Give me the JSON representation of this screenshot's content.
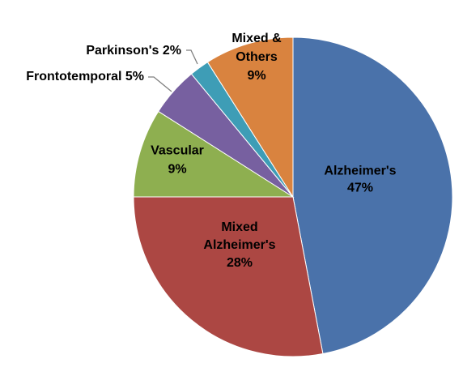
{
  "chart_data": {
    "type": "pie",
    "title": "",
    "start_angle_deg": 0,
    "direction": "clockwise",
    "slices": [
      {
        "name": "Alzheimer's",
        "value": 47,
        "color": "#4A72AA",
        "label_lines": [
          "Alzheimer's",
          "47%"
        ],
        "label_color": "#000000",
        "label_position": "inside"
      },
      {
        "name": "Mixed Alzheimer's",
        "value": 28,
        "color": "#AC4743",
        "label_lines": [
          "Mixed",
          "Alzheimer's",
          "28%"
        ],
        "label_color": "#000000",
        "label_position": "inside"
      },
      {
        "name": "Vascular",
        "value": 9,
        "color": "#8EAF50",
        "label_lines": [
          "Vascular",
          "9%"
        ],
        "label_color": "#000000",
        "label_position": "inside"
      },
      {
        "name": "Frontotemporal",
        "value": 5,
        "color": "#7760A0",
        "label_lines": [
          "Frontotemporal 5%"
        ],
        "label_color": "#000000",
        "label_position": "outside-leader"
      },
      {
        "name": "Parkinson's",
        "value": 2,
        "color": "#3E9DB6",
        "label_lines": [
          "Parkinson's 2%"
        ],
        "label_color": "#000000",
        "label_position": "outside-leader"
      },
      {
        "name": "Mixed & Others",
        "value": 9,
        "color": "#D9833F",
        "label_lines": [
          "Mixed &",
          "Others",
          "9%"
        ],
        "label_color": "#000000",
        "label_position": "inside"
      }
    ],
    "legend": "none"
  }
}
